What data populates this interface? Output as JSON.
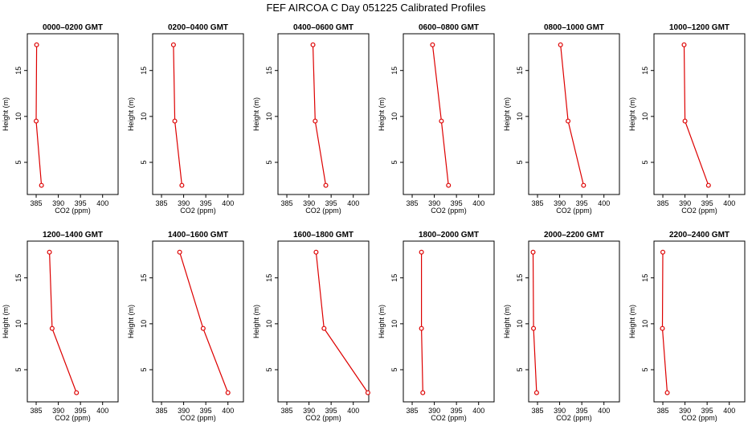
{
  "figure_title": "FEF AIRCOA C  Day 051225  Calibrated Profiles",
  "colors": {
    "series": "#dd0000",
    "axes": "#000000"
  },
  "chart_data": [
    {
      "type": "line",
      "title": "0000–0200 GMT",
      "xlabel": "CO2 (ppm)",
      "ylabel": "Height (m)",
      "xlim": [
        383,
        403.5
      ],
      "ylim": [
        1.5,
        19
      ],
      "xticks": [
        385,
        390,
        395,
        400
      ],
      "yticks": [
        5,
        10,
        15
      ],
      "grid": false,
      "series": [
        {
          "x": [
            386.2,
            385.0,
            385.1
          ],
          "y": [
            2.5,
            9.5,
            17.8
          ]
        }
      ]
    },
    {
      "type": "line",
      "title": "0200–0400 GMT",
      "xlabel": "CO2 (ppm)",
      "ylabel": "Height (m)",
      "xlim": [
        383,
        403.5
      ],
      "ylim": [
        1.5,
        19
      ],
      "xticks": [
        385,
        390,
        395,
        400
      ],
      "yticks": [
        5,
        10,
        15
      ],
      "grid": false,
      "series": [
        {
          "x": [
            389.6,
            388.0,
            387.7
          ],
          "y": [
            2.5,
            9.5,
            17.8
          ]
        }
      ]
    },
    {
      "type": "line",
      "title": "0400–0600 GMT",
      "xlabel": "CO2 (ppm)",
      "ylabel": "Height (m)",
      "xlim": [
        383,
        403.5
      ],
      "ylim": [
        1.5,
        19
      ],
      "xticks": [
        385,
        390,
        395,
        400
      ],
      "yticks": [
        5,
        10,
        15
      ],
      "grid": false,
      "series": [
        {
          "x": [
            393.8,
            391.4,
            390.9
          ],
          "y": [
            2.5,
            9.5,
            17.8
          ]
        }
      ]
    },
    {
      "type": "line",
      "title": "0600–0800 GMT",
      "xlabel": "CO2 (ppm)",
      "ylabel": "Height (m)",
      "xlim": [
        383,
        403.5
      ],
      "ylim": [
        1.5,
        19
      ],
      "xticks": [
        385,
        390,
        395,
        400
      ],
      "yticks": [
        5,
        10,
        15
      ],
      "grid": false,
      "series": [
        {
          "x": [
            393.2,
            391.6,
            389.6
          ],
          "y": [
            2.5,
            9.5,
            17.8
          ]
        }
      ]
    },
    {
      "type": "line",
      "title": "0800–1000 GMT",
      "xlabel": "CO2 (ppm)",
      "ylabel": "Height (m)",
      "xlim": [
        383,
        403.5
      ],
      "ylim": [
        1.5,
        19
      ],
      "xticks": [
        385,
        390,
        395,
        400
      ],
      "yticks": [
        5,
        10,
        15
      ],
      "grid": false,
      "series": [
        {
          "x": [
            395.4,
            391.9,
            390.2
          ],
          "y": [
            2.5,
            9.5,
            17.8
          ]
        }
      ]
    },
    {
      "type": "line",
      "title": "1000–1200 GMT",
      "xlabel": "CO2 (ppm)",
      "ylabel": "Height (m)",
      "xlim": [
        383,
        403.5
      ],
      "ylim": [
        1.5,
        19
      ],
      "xticks": [
        385,
        390,
        395,
        400
      ],
      "yticks": [
        5,
        10,
        15
      ],
      "grid": false,
      "series": [
        {
          "x": [
            395.3,
            390.0,
            389.8
          ],
          "y": [
            2.5,
            9.5,
            17.8
          ]
        }
      ]
    },
    {
      "type": "line",
      "title": "1200–1400 GMT",
      "xlabel": "CO2 (ppm)",
      "ylabel": "Height (m)",
      "xlim": [
        383,
        403.5
      ],
      "ylim": [
        1.5,
        19
      ],
      "xticks": [
        385,
        390,
        395,
        400
      ],
      "yticks": [
        5,
        10,
        15
      ],
      "grid": false,
      "series": [
        {
          "x": [
            394.1,
            388.6,
            388.0
          ],
          "y": [
            2.5,
            9.5,
            17.8
          ]
        }
      ]
    },
    {
      "type": "line",
      "title": "1400–1600 GMT",
      "xlabel": "CO2 (ppm)",
      "ylabel": "Height (m)",
      "xlim": [
        383,
        403.5
      ],
      "ylim": [
        1.5,
        19
      ],
      "xticks": [
        385,
        390,
        395,
        400
      ],
      "yticks": [
        5,
        10,
        15
      ],
      "grid": false,
      "series": [
        {
          "x": [
            400.0,
            394.4,
            389.1
          ],
          "y": [
            2.5,
            9.5,
            17.8
          ]
        }
      ]
    },
    {
      "type": "line",
      "title": "1600–1800 GMT",
      "xlabel": "CO2 (ppm)",
      "ylabel": "Height (m)",
      "xlim": [
        383,
        403.5
      ],
      "ylim": [
        1.5,
        19
      ],
      "xticks": [
        385,
        390,
        395,
        400
      ],
      "yticks": [
        5,
        10,
        15
      ],
      "grid": false,
      "series": [
        {
          "x": [
            403.3,
            393.4,
            391.6
          ],
          "y": [
            2.5,
            9.5,
            17.8
          ]
        }
      ]
    },
    {
      "type": "line",
      "title": "1800–2000 GMT",
      "xlabel": "CO2 (ppm)",
      "ylabel": "Height (m)",
      "xlim": [
        383,
        403.5
      ],
      "ylim": [
        1.5,
        19
      ],
      "xticks": [
        385,
        390,
        395,
        400
      ],
      "yticks": [
        5,
        10,
        15
      ],
      "grid": false,
      "series": [
        {
          "x": [
            387.4,
            387.1,
            387.1
          ],
          "y": [
            2.5,
            9.5,
            17.8
          ]
        }
      ]
    },
    {
      "type": "line",
      "title": "2000–2200 GMT",
      "xlabel": "CO2 (ppm)",
      "ylabel": "Height (m)",
      "xlim": [
        383,
        403.5
      ],
      "ylim": [
        1.5,
        19
      ],
      "xticks": [
        385,
        390,
        395,
        400
      ],
      "yticks": [
        5,
        10,
        15
      ],
      "grid": false,
      "series": [
        {
          "x": [
            384.8,
            384.1,
            384.0
          ],
          "y": [
            2.5,
            9.5,
            17.8
          ]
        }
      ]
    },
    {
      "type": "line",
      "title": "2200–2400 GMT",
      "xlabel": "CO2 (ppm)",
      "ylabel": "Height (m)",
      "xlim": [
        383,
        403.5
      ],
      "ylim": [
        1.5,
        19
      ],
      "xticks": [
        385,
        390,
        395,
        400
      ],
      "yticks": [
        5,
        10,
        15
      ],
      "grid": false,
      "series": [
        {
          "x": [
            386.0,
            384.9,
            385.0
          ],
          "y": [
            2.5,
            9.5,
            17.8
          ]
        }
      ]
    }
  ]
}
